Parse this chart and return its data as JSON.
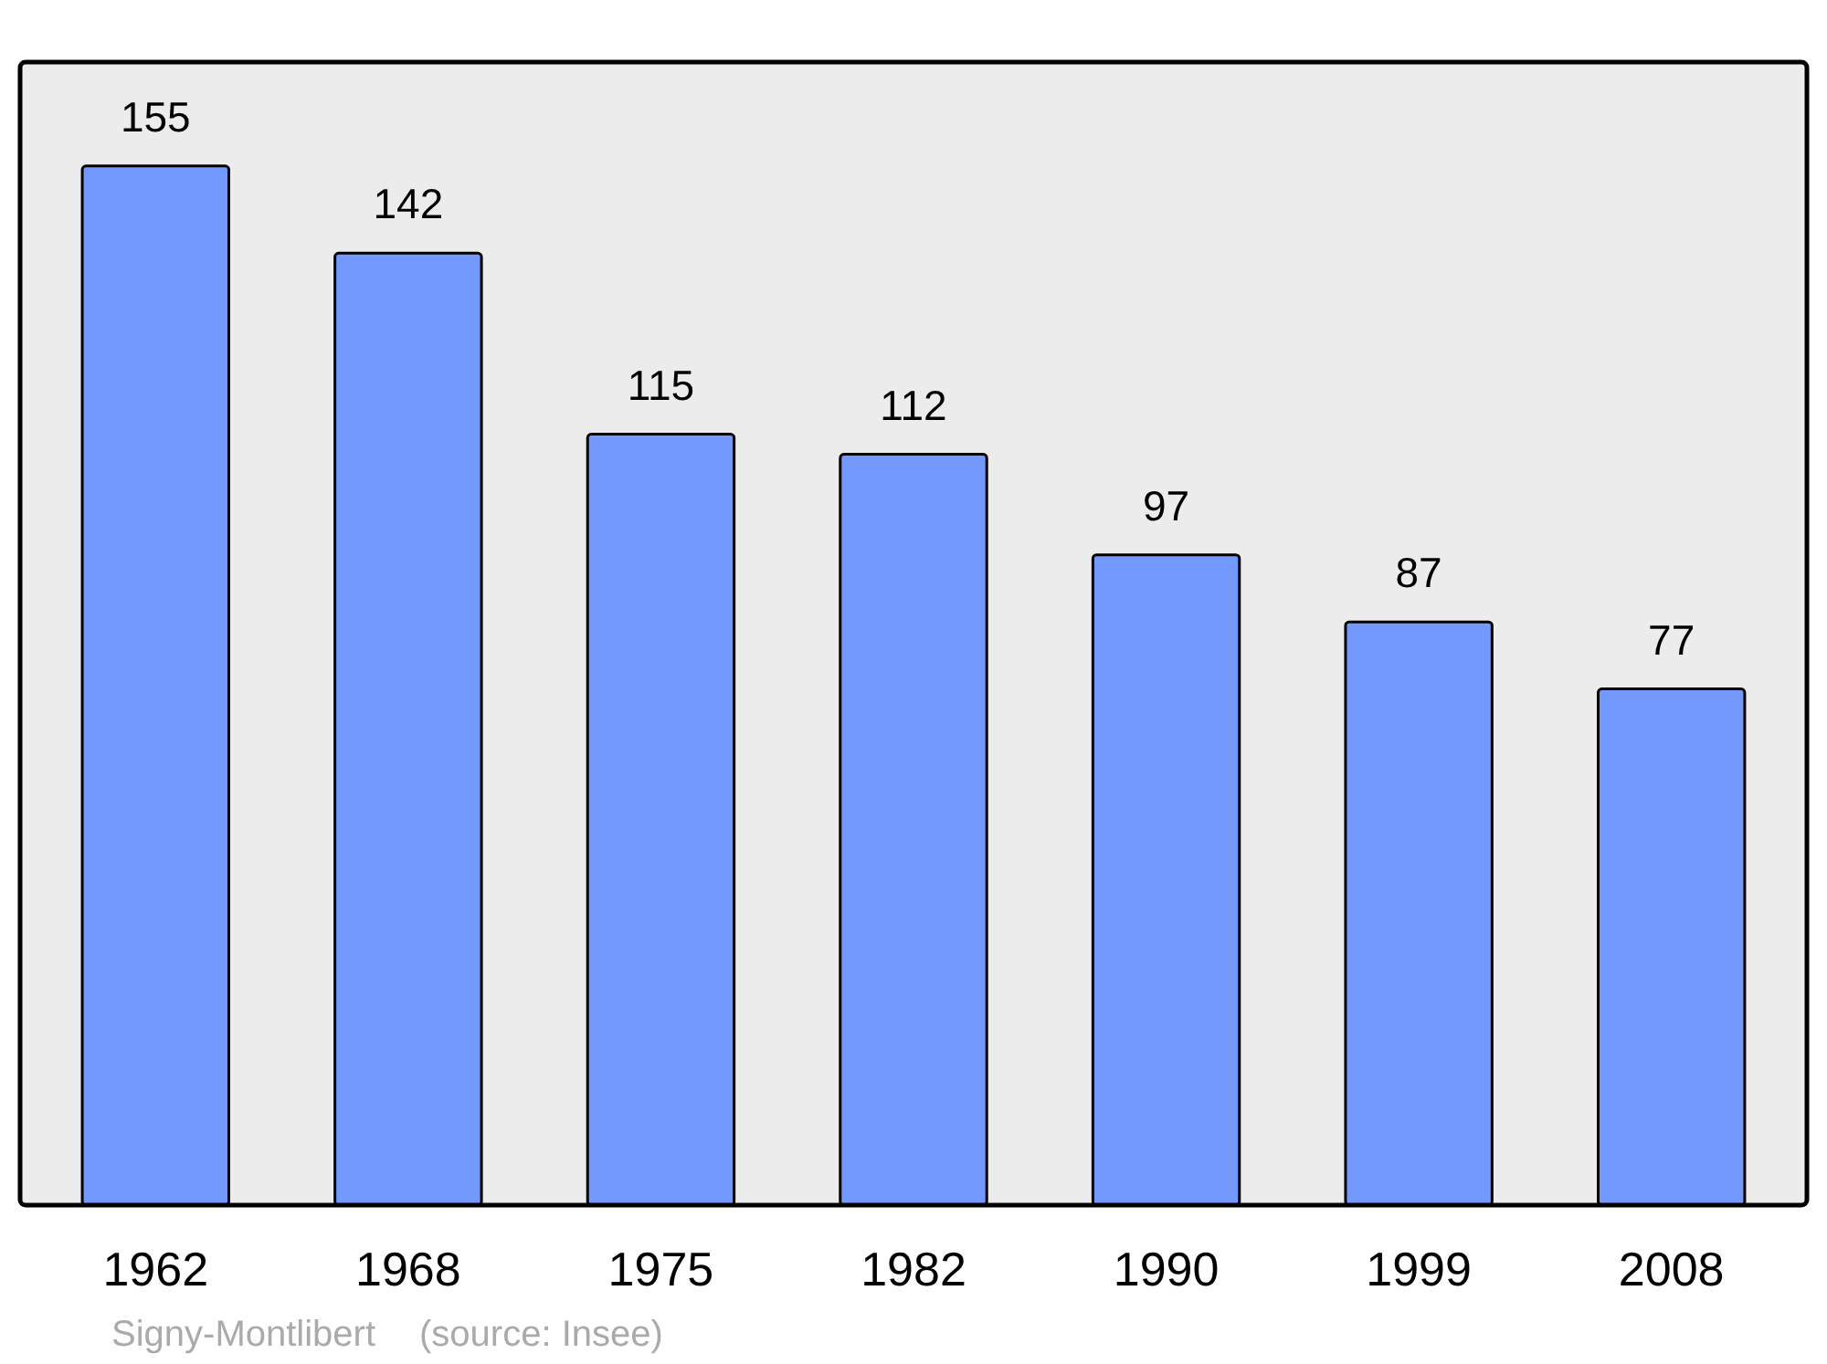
{
  "chart_data": {
    "type": "bar",
    "categories": [
      "1962",
      "1968",
      "1975",
      "1982",
      "1990",
      "1999",
      "2008"
    ],
    "values": [
      155,
      142,
      115,
      112,
      97,
      87,
      77
    ],
    "color": "#7399ff",
    "data_labels": true,
    "annotations": [
      "Signy-Montlibert",
      "(source: Insee)"
    ]
  }
}
